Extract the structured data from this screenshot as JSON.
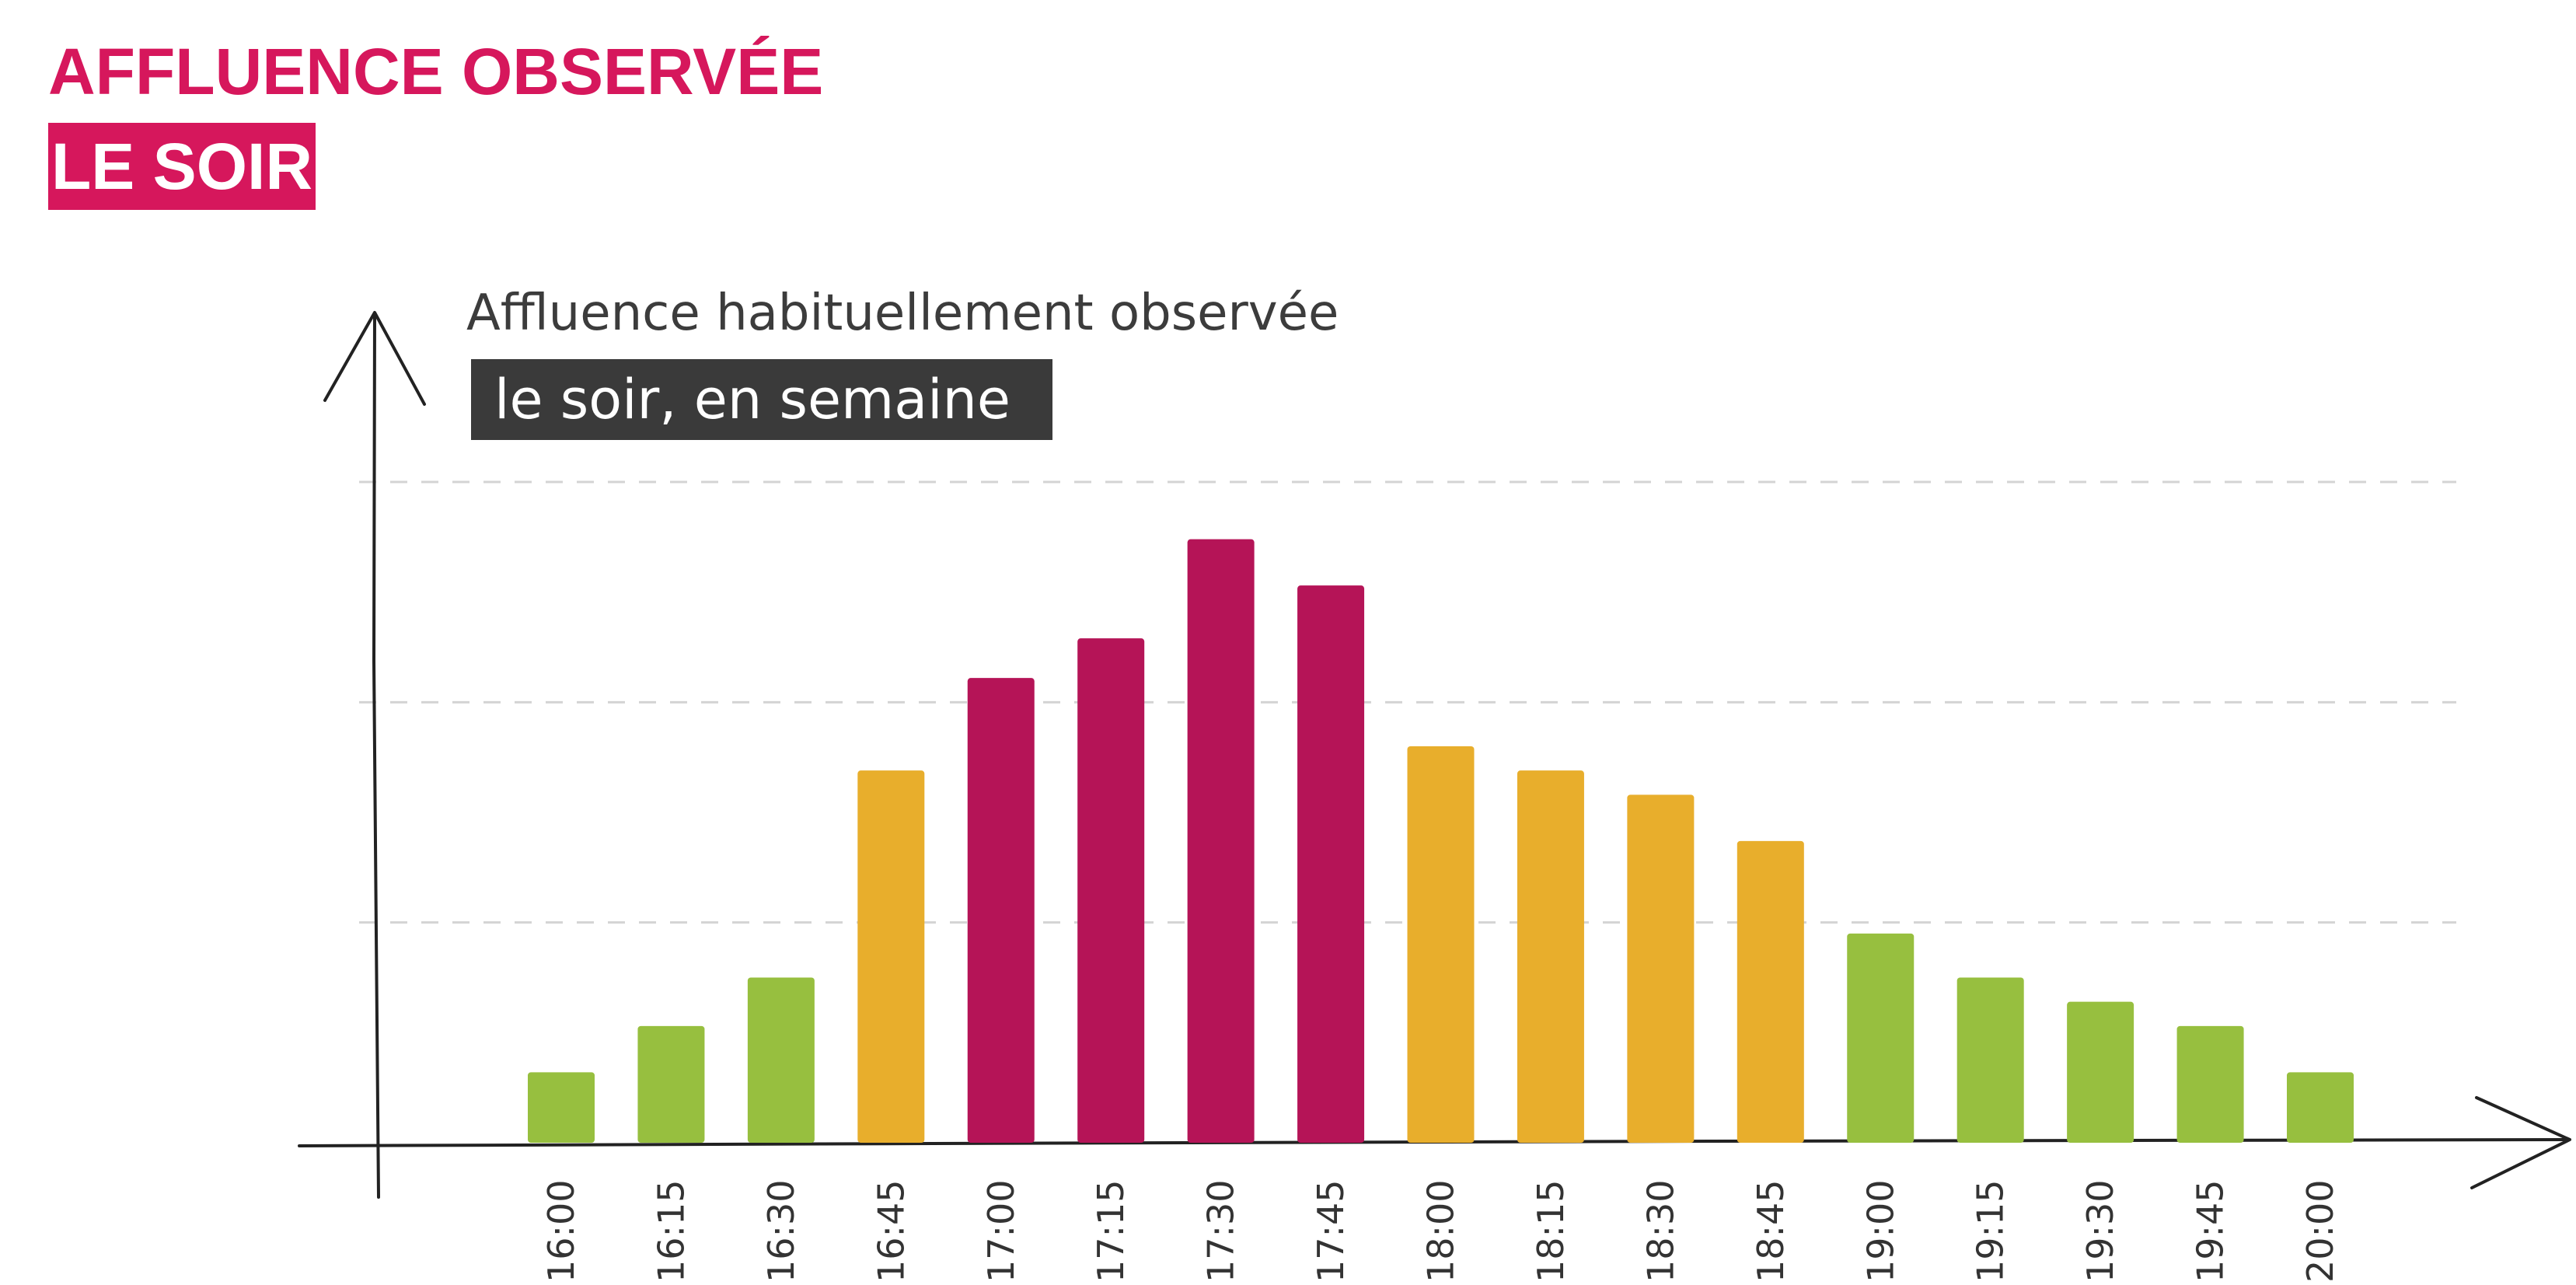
{
  "header": {
    "line1": "AFFLUENCE OBSERVÉE",
    "line2": "LE SOIR"
  },
  "colors": {
    "accent": "#d6175c",
    "low": "#97bf3f",
    "medium": "#e8ae2c",
    "high": "#b51457",
    "subtitle_box": "#3a3a3a",
    "axis": "#222222",
    "grid": "#d4d4d4"
  },
  "chart_data": {
    "type": "bar",
    "title": "Affluence habituellement observée",
    "subtitle": "le soir, en semaine",
    "xlabel": "",
    "ylabel": "",
    "ylim": [
      0,
      300
    ],
    "grid": true,
    "y_axis_labels": false,
    "categories": [
      "16:00",
      "16:15",
      "16:30",
      "16:45",
      "17:00",
      "17:15",
      "17:30",
      "17:45",
      "18:00",
      "18:15",
      "18:30",
      "18:45",
      "19:00",
      "19:15",
      "19:30",
      "19:45",
      "20:00"
    ],
    "values": [
      32,
      53,
      75,
      169,
      211,
      229,
      274,
      253,
      180,
      169,
      158,
      137,
      95,
      75,
      64,
      53,
      32
    ],
    "levels": [
      "low",
      "low",
      "low",
      "medium",
      "high",
      "high",
      "high",
      "high",
      "medium",
      "medium",
      "medium",
      "medium",
      "low",
      "low",
      "low",
      "low",
      "low"
    ],
    "gridlines": [
      100,
      200,
      300
    ]
  }
}
